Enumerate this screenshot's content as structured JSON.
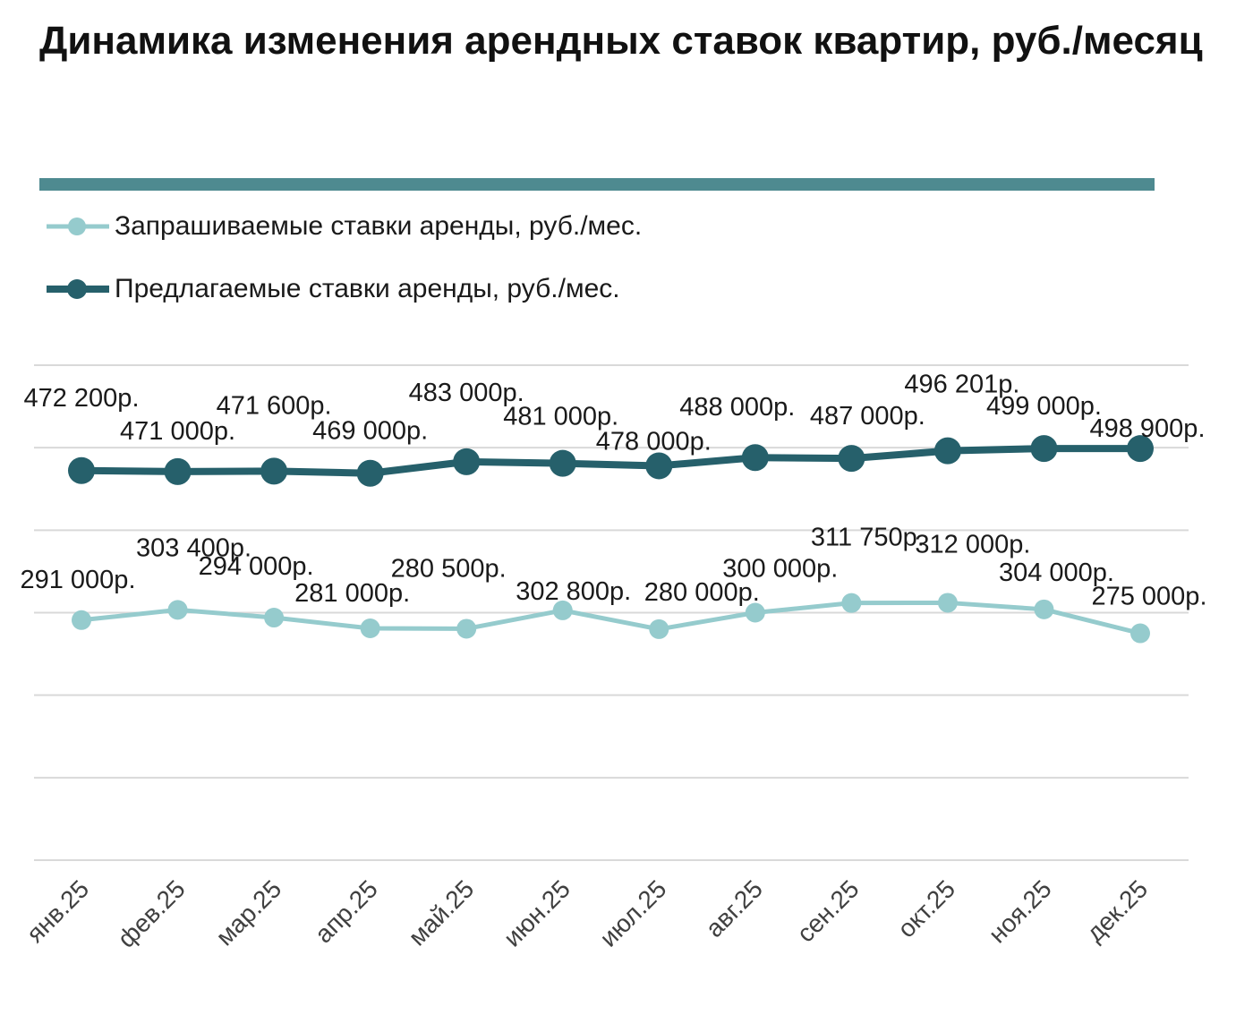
{
  "title": "Динамика изменения арендных ставок квартир, руб./месяц",
  "colors": {
    "accent_rule": "#4e8a90",
    "asking": "#95cbcd",
    "offered": "#26606b",
    "grid": "#d9d9d9",
    "text": "#1a1a1a"
  },
  "legend": [
    {
      "label": "Запрашиваемые ставки аренды, руб./мес.",
      "series": "asking"
    },
    {
      "label": "Предлагаемые ставки аренды, руб./мес.",
      "series": "offered"
    }
  ],
  "chart_data": {
    "type": "line",
    "title": "Динамика изменения арендных ставок квартир, руб./месяц",
    "xlabel": "",
    "ylabel": "",
    "ylim": [
      0,
      600000
    ],
    "grid": true,
    "gridlines": [
      0,
      100000,
      200000,
      300000,
      400000,
      500000,
      600000
    ],
    "categories": [
      "янв.25",
      "фев.25",
      "мар.25",
      "апр.25",
      "май.25",
      "июн.25",
      "июл.25",
      "авг.25",
      "сен.25",
      "окт.25",
      "ноя.25",
      "дек.25"
    ],
    "series": [
      {
        "name": "Запрашиваемые ставки аренды, руб./мес.",
        "key": "asking",
        "values": [
          291000,
          303400,
          294000,
          281000,
          280500,
          302800,
          280000,
          300000,
          311750,
          312000,
          304000,
          275000
        ],
        "labels": [
          "291 000р.",
          "303 400р.",
          "294 000р.",
          "281 000р.",
          "280 500р.",
          "302 800р.",
          "280 000р.",
          "300 000р.",
          "311 750р.",
          "312 000р.",
          "304 000р.",
          "275 000р."
        ]
      },
      {
        "name": "Предлагаемые ставки аренды, руб./мес.",
        "key": "offered",
        "values": [
          472200,
          471000,
          471600,
          469000,
          483000,
          481000,
          478000,
          488000,
          487000,
          496201,
          499000,
          498900
        ],
        "labels": [
          "472 200р.",
          "471 000р.",
          "471 600р.",
          "469 000р.",
          "483 000р.",
          "481 000р.",
          "478 000р.",
          "488 000р.",
          "487 000р.",
          "496 201р.",
          "499 000р.",
          "498 900р."
        ]
      }
    ]
  }
}
